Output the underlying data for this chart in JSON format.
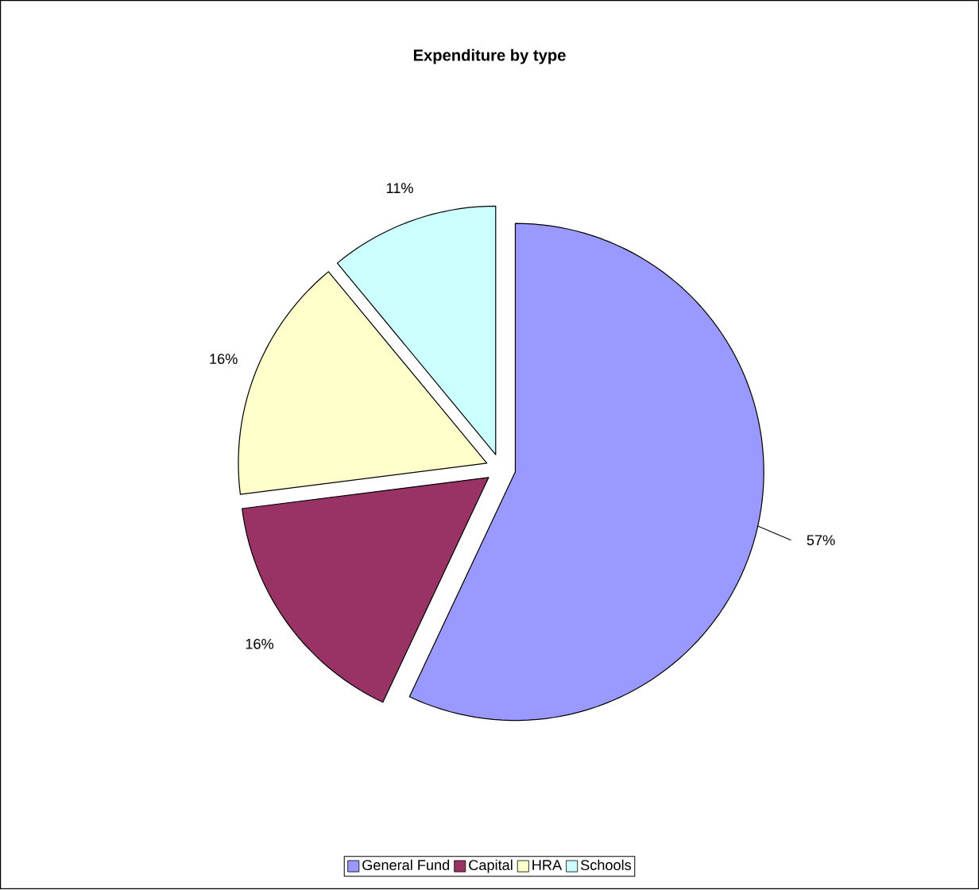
{
  "chart_data": {
    "type": "pie",
    "title": "Expenditure by type",
    "categories": [
      "General Fund",
      "Capital",
      "HRA",
      "Schools"
    ],
    "values": [
      57,
      16,
      16,
      11
    ],
    "colors": [
      "#9999ff",
      "#993366",
      "#ffffcc",
      "#ccffff"
    ],
    "value_labels": [
      "57%",
      "16%",
      "16%",
      "11%"
    ],
    "legend": "bottom"
  }
}
